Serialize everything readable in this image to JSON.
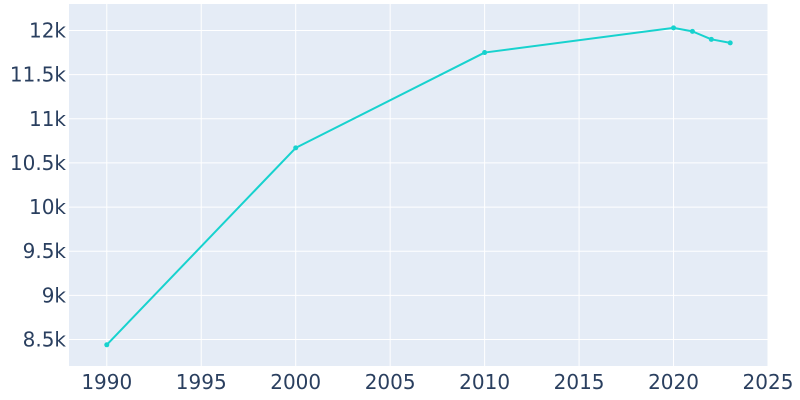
{
  "chart_data": {
    "type": "line",
    "title": "",
    "xlabel": "",
    "ylabel": "",
    "xlim": [
      1988,
      2025
    ],
    "ylim": [
      8200,
      12300
    ],
    "x_ticks": [
      1990,
      1995,
      2000,
      2005,
      2010,
      2015,
      2020,
      2025
    ],
    "x_tick_labels": [
      "1990",
      "1995",
      "2000",
      "2005",
      "2010",
      "2015",
      "2020",
      "2025"
    ],
    "y_ticks": [
      8500,
      9000,
      9500,
      10000,
      10500,
      11000,
      11500,
      12000
    ],
    "y_tick_labels": [
      "8.5k",
      "9k",
      "9.5k",
      "10k",
      "10.5k",
      "11k",
      "11.5k",
      "12k"
    ],
    "grid": true,
    "series": [
      {
        "x": [
          1990,
          2000,
          2010,
          2020,
          2021,
          2022,
          2023
        ],
        "values": [
          8440,
          10670,
          11750,
          12030,
          11990,
          11900,
          11860
        ]
      }
    ],
    "colors": {
      "plot_background": "#e5ecf6",
      "line": "#17d2ce",
      "marker": "#17d2ce",
      "tick_text": "#2a3f5f",
      "grid": "#ffffff"
    }
  }
}
